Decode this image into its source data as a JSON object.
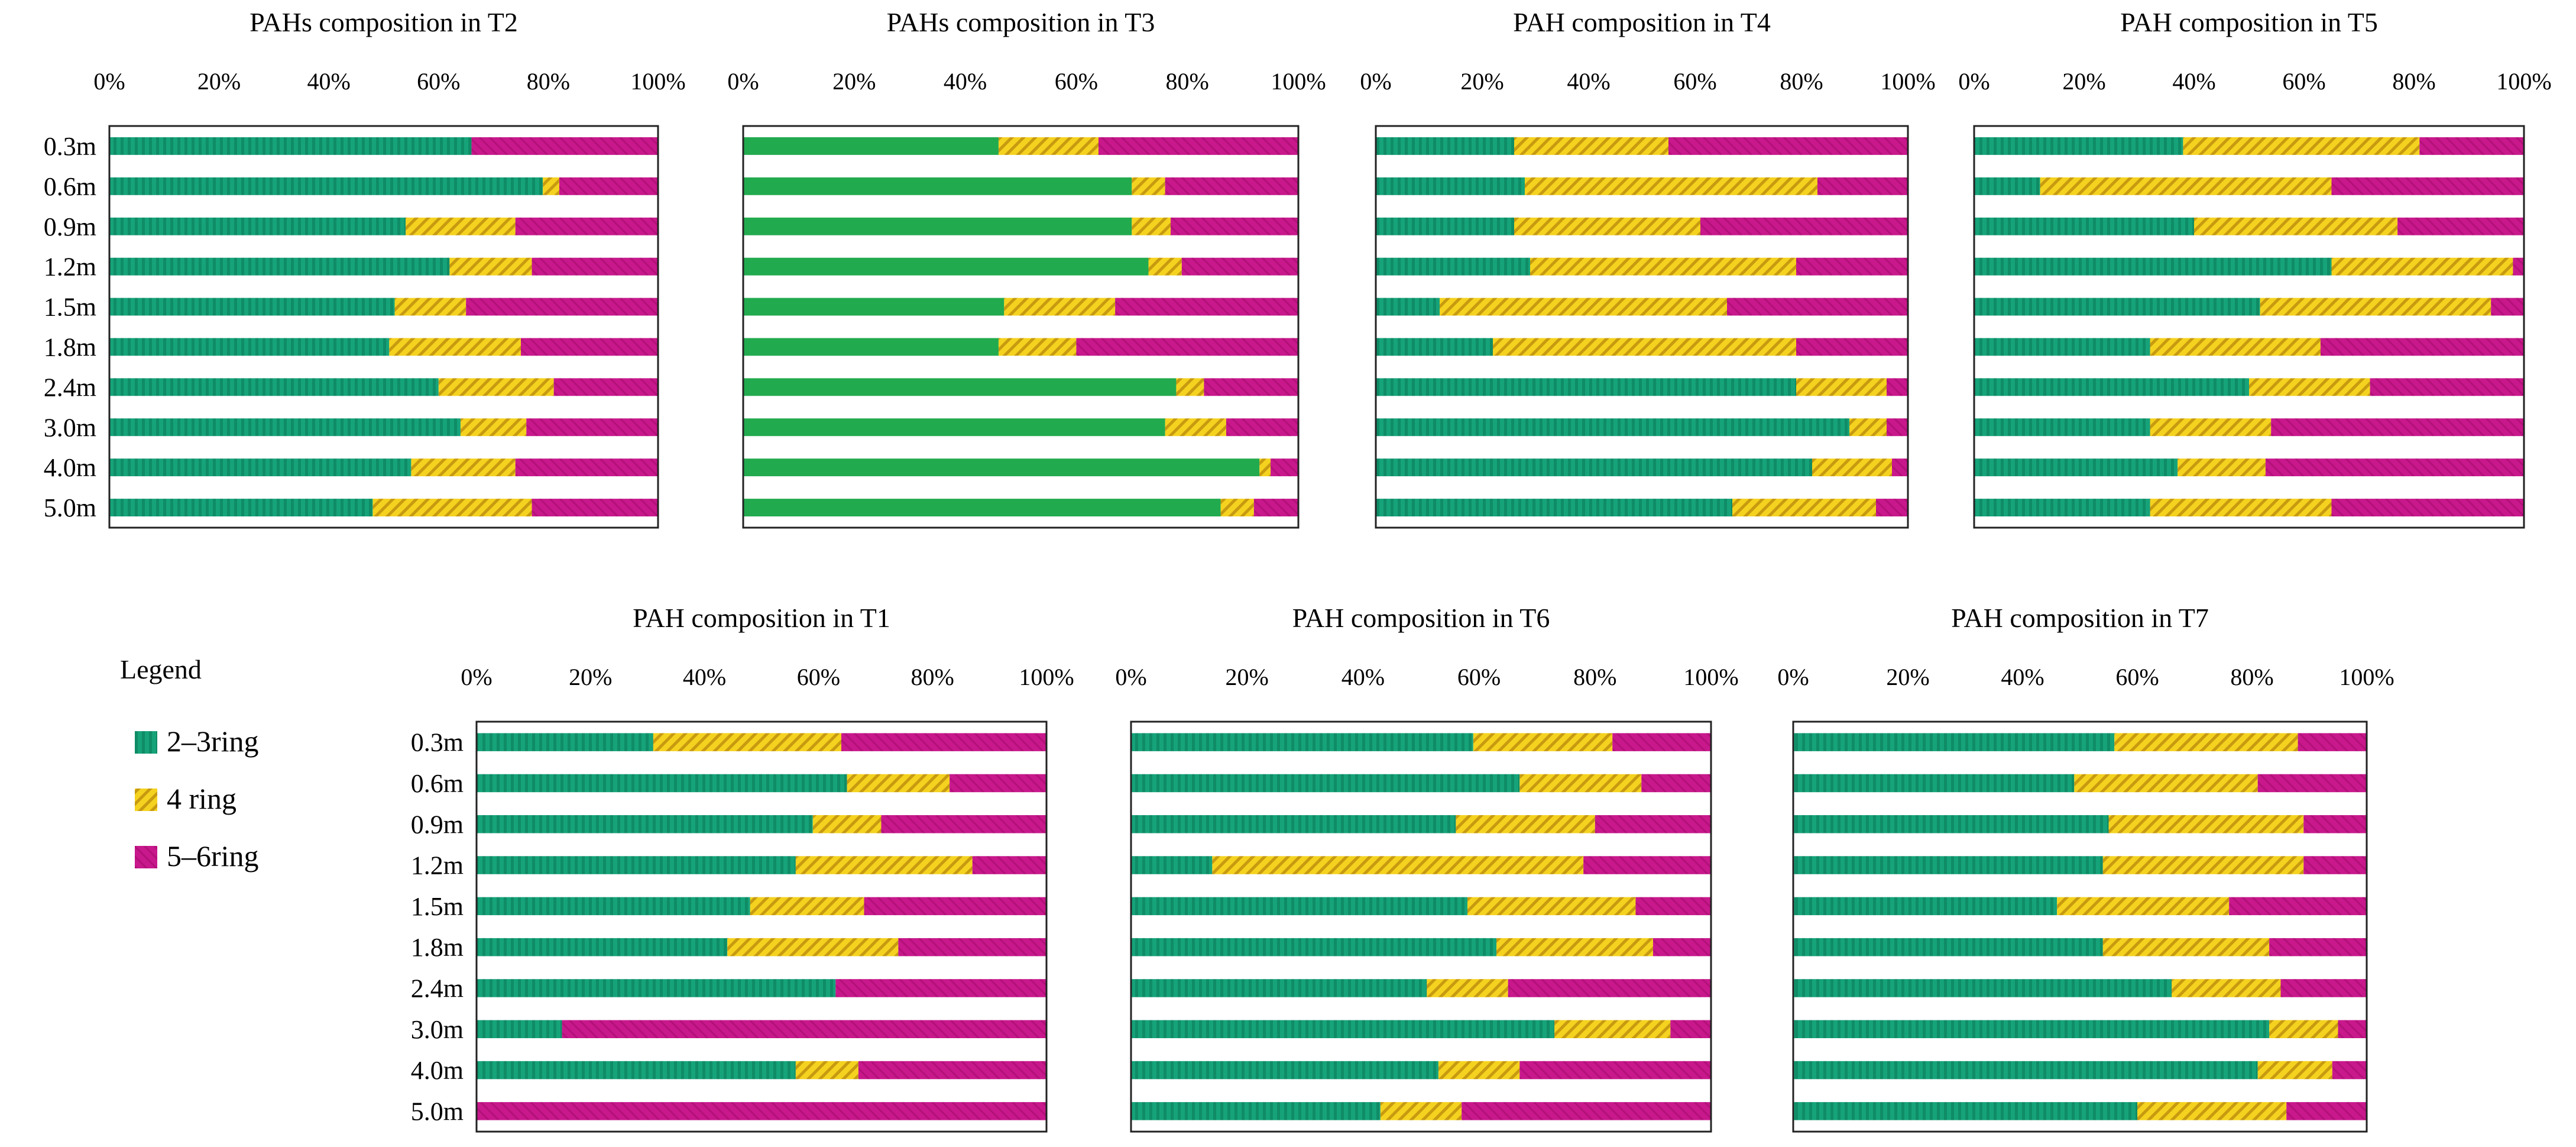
{
  "depths": [
    "0.3m",
    "0.6m",
    "0.9m",
    "1.2m",
    "1.5m",
    "1.8m",
    "2.4m",
    "3.0m",
    "4.0m",
    "5.0m"
  ],
  "ticks": [
    "0%",
    "20%",
    "40%",
    "60%",
    "80%",
    "100%"
  ],
  "legend": {
    "title": "Legend",
    "items": [
      {
        "label": "2–3ring",
        "color": "#16a37a"
      },
      {
        "label": "4 ring",
        "color": "#f4d21f"
      },
      {
        "label": "5–6ring",
        "color": "#c8188c"
      }
    ]
  },
  "colors": {
    "green": "#16a37a",
    "green_solid": "#22aa4e",
    "yellow": "#f4d21f",
    "magenta": "#c8188c",
    "frame": "#222222"
  },
  "chart_data": [
    {
      "id": "T2",
      "type": "bar",
      "stacked": "percent",
      "orientation": "horizontal",
      "title": "PAHs composition in T2",
      "categories": [
        "0.3m",
        "0.6m",
        "0.9m",
        "1.2m",
        "1.5m",
        "1.8m",
        "2.4m",
        "3.0m",
        "4.0m",
        "5.0m"
      ],
      "series": [
        {
          "name": "2–3ring",
          "values": [
            66,
            79,
            54,
            62,
            52,
            51,
            60,
            64,
            55,
            48
          ]
        },
        {
          "name": "4 ring",
          "values": [
            0,
            3,
            20,
            15,
            13,
            24,
            21,
            12,
            19,
            29
          ]
        },
        {
          "name": "5–6ring",
          "values": [
            34,
            18,
            26,
            23,
            35,
            25,
            19,
            24,
            26,
            23
          ]
        }
      ]
    },
    {
      "id": "T3",
      "type": "bar",
      "stacked": "percent",
      "orientation": "horizontal",
      "title": "PAHs composition in T3",
      "categories": [
        "0.3m",
        "0.6m",
        "0.9m",
        "1.2m",
        "1.5m",
        "1.8m",
        "2.4m",
        "3.0m",
        "4.0m",
        "5.0m"
      ],
      "series": [
        {
          "name": "2–3ring",
          "values": [
            46,
            70,
            70,
            73,
            47,
            46,
            78,
            76,
            93,
            86
          ]
        },
        {
          "name": "4 ring",
          "values": [
            18,
            6,
            7,
            6,
            20,
            14,
            5,
            11,
            2,
            6
          ]
        },
        {
          "name": "5–6ring",
          "values": [
            36,
            24,
            23,
            21,
            33,
            40,
            17,
            13,
            5,
            8
          ]
        }
      ]
    },
    {
      "id": "T4",
      "type": "bar",
      "stacked": "percent",
      "orientation": "horizontal",
      "title": "PAH  composition in T4",
      "categories": [
        "0.3m",
        "0.6m",
        "0.9m",
        "1.2m",
        "1.5m",
        "1.8m",
        "2.4m",
        "3.0m",
        "4.0m",
        "5.0m"
      ],
      "series": [
        {
          "name": "2–3ring",
          "values": [
            26,
            28,
            26,
            29,
            12,
            22,
            79,
            89,
            82,
            67
          ]
        },
        {
          "name": "4 ring",
          "values": [
            29,
            55,
            35,
            50,
            54,
            57,
            17,
            7,
            15,
            27
          ]
        },
        {
          "name": "5–6ring",
          "values": [
            45,
            17,
            39,
            21,
            34,
            21,
            4,
            4,
            3,
            6
          ]
        }
      ]
    },
    {
      "id": "T5",
      "type": "bar",
      "stacked": "percent",
      "orientation": "horizontal",
      "title": "PAH composition in T5",
      "categories": [
        "0.3m",
        "0.6m",
        "0.9m",
        "1.2m",
        "1.5m",
        "1.8m",
        "2.4m",
        "3.0m",
        "4.0m",
        "5.0m"
      ],
      "series": [
        {
          "name": "2–3ring",
          "values": [
            38,
            12,
            40,
            65,
            52,
            32,
            50,
            32,
            37,
            32
          ]
        },
        {
          "name": "4 ring",
          "values": [
            43,
            53,
            37,
            33,
            42,
            31,
            22,
            22,
            16,
            33
          ]
        },
        {
          "name": "5–6ring",
          "values": [
            19,
            35,
            23,
            2,
            6,
            37,
            28,
            46,
            47,
            35
          ]
        }
      ]
    },
    {
      "id": "T1",
      "type": "bar",
      "stacked": "percent",
      "orientation": "horizontal",
      "title": "PAH composition in T1",
      "categories": [
        "0.3m",
        "0.6m",
        "0.9m",
        "1.2m",
        "1.5m",
        "1.8m",
        "2.4m",
        "3.0m",
        "4.0m",
        "5.0m"
      ],
      "series": [
        {
          "name": "2–3ring",
          "values": [
            31,
            65,
            59,
            56,
            48,
            44,
            63,
            15,
            56,
            0
          ]
        },
        {
          "name": "4 ring",
          "values": [
            33,
            18,
            12,
            31,
            20,
            30,
            0,
            0,
            11,
            0
          ]
        },
        {
          "name": "5–6ring",
          "values": [
            36,
            17,
            29,
            13,
            32,
            26,
            37,
            85,
            33,
            100
          ]
        }
      ]
    },
    {
      "id": "T6",
      "type": "bar",
      "stacked": "percent",
      "orientation": "horizontal",
      "title": "PAH composition in T6",
      "categories": [
        "0.3m",
        "0.6m",
        "0.9m",
        "1.2m",
        "1.5m",
        "1.8m",
        "2.4m",
        "3.0m",
        "4.0m",
        "5.0m"
      ],
      "series": [
        {
          "name": "2–3ring",
          "values": [
            59,
            67,
            56,
            14,
            58,
            63,
            51,
            73,
            53,
            43
          ]
        },
        {
          "name": "4 ring",
          "values": [
            24,
            21,
            24,
            64,
            29,
            27,
            14,
            20,
            14,
            14
          ]
        },
        {
          "name": "5–6ring",
          "values": [
            17,
            12,
            20,
            22,
            13,
            10,
            35,
            7,
            33,
            43
          ]
        }
      ]
    },
    {
      "id": "T7",
      "type": "bar",
      "stacked": "percent",
      "orientation": "horizontal",
      "title": "PAH composition in T7",
      "categories": [
        "0.3m",
        "0.6m",
        "0.9m",
        "1.2m",
        "1.5m",
        "1.8m",
        "2.4m",
        "3.0m",
        "4.0m",
        "5.0m"
      ],
      "series": [
        {
          "name": "2–3ring",
          "values": [
            56,
            49,
            55,
            54,
            46,
            54,
            66,
            83,
            81,
            60
          ]
        },
        {
          "name": "4 ring",
          "values": [
            32,
            32,
            34,
            35,
            30,
            29,
            19,
            12,
            13,
            26
          ]
        },
        {
          "name": "5–6ring",
          "values": [
            12,
            19,
            11,
            11,
            24,
            17,
            15,
            5,
            6,
            14
          ]
        }
      ]
    }
  ]
}
